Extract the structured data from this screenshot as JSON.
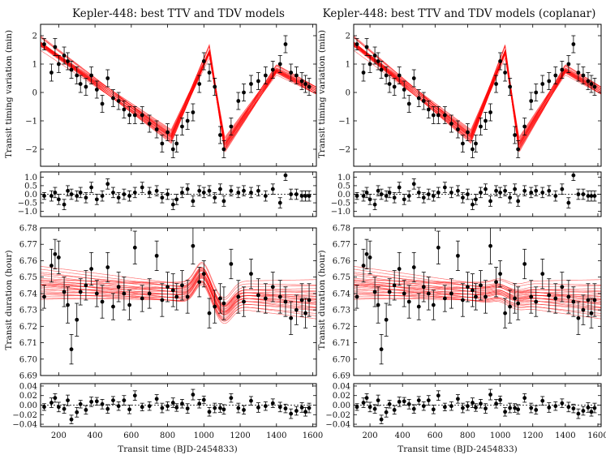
{
  "chart_data": [
    {
      "type": "scatter",
      "title": "Kepler-448: best TTV and TDV models",
      "xlabel": "Transit time (BJD-2454833)",
      "xlim": [
        100,
        1620
      ],
      "xticks": [
        200,
        400,
        600,
        800,
        1000,
        1200,
        1400,
        1600
      ],
      "panels": [
        {
          "id": "ttv",
          "ylabel": "Transit timing variation (min)",
          "ylim": [
            -2.6,
            2.4
          ],
          "yticks": [
            -2,
            -1,
            0,
            1,
            2
          ],
          "ytick_labels": [
            "−2",
            "−1",
            "0",
            "1",
            "2"
          ],
          "model": {
            "kind": "ttv",
            "ampl": 0,
            "color": "#ff0000"
          },
          "series_points": "ttv"
        },
        {
          "id": "ttv_resid",
          "ylabel": "",
          "ylim": [
            -1.3,
            1.3
          ],
          "yticks": [
            -1,
            -0.5,
            0,
            0.5,
            1
          ],
          "ytick_labels": [
            "−1.0",
            "−0.5",
            "0.0",
            "0.5",
            "1.0"
          ],
          "zero_line": true,
          "series_points": "ttv_resid"
        },
        {
          "id": "tdv",
          "ylabel": "Transit duration (hour)",
          "ylim": [
            6.69,
            6.78
          ],
          "yticks": [
            6.69,
            6.7,
            6.71,
            6.72,
            6.73,
            6.74,
            6.75,
            6.76,
            6.77,
            6.78
          ],
          "ytick_labels": [
            "6.69",
            "6.70",
            "6.71",
            "6.72",
            "6.73",
            "6.74",
            "6.75",
            "6.76",
            "6.77",
            "6.78"
          ],
          "model": {
            "kind": "tdv",
            "ampl": 1,
            "color": "#ff0000"
          },
          "series_points": "tdv"
        },
        {
          "id": "tdv_resid",
          "ylabel": "",
          "ylim": [
            -0.045,
            0.045
          ],
          "yticks": [
            -0.04,
            -0.02,
            0,
            0.02,
            0.04
          ],
          "ytick_labels": [
            "−0.04",
            "−0.02",
            "0.00",
            "0.02",
            "0.04"
          ],
          "zero_line": true,
          "series_points": "tdv_resid"
        }
      ]
    },
    {
      "type": "scatter",
      "title": "Kepler-448: best TTV and TDV models (coplanar)",
      "xlabel": "Transit time (BJD-2454833)",
      "xlim": [
        100,
        1620
      ],
      "xticks": [
        200,
        400,
        600,
        800,
        1000,
        1200,
        1400,
        1600
      ],
      "panels": [
        {
          "id": "ttv",
          "ylabel": "Transit timing variation (min)",
          "ylim": [
            -2.6,
            2.4
          ],
          "yticks": [
            -2,
            -1,
            0,
            1,
            2
          ],
          "ytick_labels": [
            "−2",
            "−1",
            "0",
            "1",
            "2"
          ],
          "model": {
            "kind": "ttv",
            "ampl": 0,
            "color": "#ff0000"
          },
          "series_points": "ttv"
        },
        {
          "id": "ttv_resid",
          "ylabel": "",
          "ylim": [
            -1.3,
            1.3
          ],
          "yticks": [
            -1,
            -0.5,
            0,
            0.5,
            1
          ],
          "ytick_labels": [
            "−1.0",
            "−0.5",
            "0.0",
            "0.5",
            "1.0"
          ],
          "zero_line": true,
          "series_points": "ttv_resid"
        },
        {
          "id": "tdv",
          "ylabel": "Transit duration (hour)",
          "ylim": [
            6.69,
            6.78
          ],
          "yticks": [
            6.69,
            6.7,
            6.71,
            6.72,
            6.73,
            6.74,
            6.75,
            6.76,
            6.77,
            6.78
          ],
          "ytick_labels": [
            "6.69",
            "6.70",
            "6.71",
            "6.72",
            "6.73",
            "6.74",
            "6.75",
            "6.76",
            "6.77",
            "6.78"
          ],
          "model": {
            "kind": "tdv",
            "ampl": 0.15,
            "color": "#ff0000"
          },
          "series_points": "tdv"
        },
        {
          "id": "tdv_resid",
          "ylabel": "",
          "ylim": [
            -0.045,
            0.045
          ],
          "yticks": [
            -0.04,
            -0.02,
            0,
            0.02,
            0.04
          ],
          "ytick_labels": [
            "−0.04",
            "−0.02",
            "0.00",
            "0.02",
            "0.04"
          ],
          "zero_line": true,
          "series_points": "tdv_resid"
        }
      ]
    }
  ],
  "observations": {
    "ttv": [
      [
        120,
        1.7,
        0.2
      ],
      [
        160,
        0.7,
        0.3
      ],
      [
        180,
        1.6,
        0.3
      ],
      [
        200,
        1.0,
        0.3
      ],
      [
        230,
        1.3,
        0.3
      ],
      [
        250,
        1.1,
        0.3
      ],
      [
        270,
        0.8,
        0.3
      ],
      [
        300,
        0.6,
        0.3
      ],
      [
        320,
        0.3,
        0.3
      ],
      [
        350,
        0.2,
        0.3
      ],
      [
        380,
        0.6,
        0.3
      ],
      [
        410,
        0.1,
        0.3
      ],
      [
        440,
        -0.4,
        0.3
      ],
      [
        470,
        0.5,
        0.3
      ],
      [
        500,
        -0.2,
        0.3
      ],
      [
        530,
        -0.3,
        0.3
      ],
      [
        560,
        -0.6,
        0.3
      ],
      [
        590,
        -0.8,
        0.3
      ],
      [
        620,
        -0.8,
        0.3
      ],
      [
        660,
        -0.8,
        0.3
      ],
      [
        700,
        -1.1,
        0.3
      ],
      [
        740,
        -1.3,
        0.3
      ],
      [
        770,
        -1.8,
        0.3
      ],
      [
        800,
        -1.4,
        0.3
      ],
      [
        830,
        -2.0,
        0.3
      ],
      [
        850,
        -1.8,
        0.3
      ],
      [
        880,
        -1.2,
        0.3
      ],
      [
        910,
        -1.0,
        0.3
      ],
      [
        940,
        -0.7,
        0.3
      ],
      [
        975,
        0.3,
        0.3
      ],
      [
        1000,
        1.1,
        0.3
      ],
      [
        1030,
        0.7,
        0.3
      ],
      [
        1060,
        0.2,
        0.3
      ],
      [
        1090,
        -1.5,
        0.3
      ],
      [
        1110,
        -2.0,
        0.3
      ],
      [
        1150,
        -1.2,
        0.3
      ],
      [
        1190,
        -0.3,
        0.3
      ],
      [
        1220,
        0.0,
        0.3
      ],
      [
        1260,
        0.3,
        0.3
      ],
      [
        1300,
        0.4,
        0.3
      ],
      [
        1340,
        0.6,
        0.3
      ],
      [
        1380,
        0.8,
        0.3
      ],
      [
        1420,
        1.0,
        0.3
      ],
      [
        1450,
        1.7,
        0.3
      ],
      [
        1480,
        0.7,
        0.3
      ],
      [
        1510,
        0.6,
        0.3
      ],
      [
        1540,
        0.4,
        0.3
      ],
      [
        1560,
        0.3,
        0.3
      ],
      [
        1580,
        0.2,
        0.3
      ]
    ],
    "ttv_resid": [
      [
        120,
        -0.1,
        0.2
      ],
      [
        160,
        -0.1,
        0.3
      ],
      [
        180,
        0.1,
        0.3
      ],
      [
        200,
        -0.3,
        0.3
      ],
      [
        230,
        -0.6,
        0.3
      ],
      [
        250,
        0.2,
        0.3
      ],
      [
        270,
        0.0,
        0.3
      ],
      [
        300,
        -0.1,
        0.3
      ],
      [
        320,
        0.1,
        0.3
      ],
      [
        350,
        -0.2,
        0.3
      ],
      [
        380,
        0.4,
        0.3
      ],
      [
        410,
        -0.3,
        0.3
      ],
      [
        440,
        -0.1,
        0.3
      ],
      [
        470,
        0.6,
        0.3
      ],
      [
        500,
        0.1,
        0.3
      ],
      [
        530,
        -0.2,
        0.3
      ],
      [
        560,
        0.0,
        0.3
      ],
      [
        590,
        -0.1,
        0.3
      ],
      [
        620,
        0.1,
        0.3
      ],
      [
        660,
        0.4,
        0.3
      ],
      [
        700,
        0.1,
        0.3
      ],
      [
        740,
        0.2,
        0.3
      ],
      [
        770,
        -0.2,
        0.3
      ],
      [
        800,
        0.0,
        0.3
      ],
      [
        830,
        -0.6,
        0.3
      ],
      [
        850,
        -0.3,
        0.3
      ],
      [
        880,
        0.1,
        0.3
      ],
      [
        910,
        0.3,
        0.3
      ],
      [
        940,
        -0.4,
        0.3
      ],
      [
        975,
        0.2,
        0.3
      ],
      [
        1000,
        0.1,
        0.3
      ],
      [
        1030,
        0.2,
        0.3
      ],
      [
        1060,
        -0.2,
        0.3
      ],
      [
        1090,
        0.3,
        0.3
      ],
      [
        1110,
        -0.4,
        0.3
      ],
      [
        1150,
        0.2,
        0.3
      ],
      [
        1190,
        0.1,
        0.3
      ],
      [
        1220,
        0.2,
        0.3
      ],
      [
        1260,
        0.1,
        0.3
      ],
      [
        1300,
        0.2,
        0.3
      ],
      [
        1340,
        -0.1,
        0.3
      ],
      [
        1380,
        0.3,
        0.3
      ],
      [
        1420,
        -0.5,
        0.3
      ],
      [
        1450,
        1.1,
        0.3
      ],
      [
        1480,
        0.0,
        0.3
      ],
      [
        1510,
        0.0,
        0.3
      ],
      [
        1540,
        -0.1,
        0.3
      ],
      [
        1560,
        -0.1,
        0.3
      ],
      [
        1580,
        -0.1,
        0.3
      ]
    ],
    "tdv": [
      [
        120,
        6.738,
        0.007
      ],
      [
        160,
        6.757,
        0.01
      ],
      [
        180,
        6.764,
        0.009
      ],
      [
        200,
        6.762,
        0.01
      ],
      [
        230,
        6.741,
        0.009
      ],
      [
        250,
        6.733,
        0.011
      ],
      [
        270,
        6.706,
        0.009
      ],
      [
        300,
        6.724,
        0.01
      ],
      [
        320,
        6.741,
        0.008
      ],
      [
        350,
        6.745,
        0.009
      ],
      [
        380,
        6.755,
        0.01
      ],
      [
        410,
        6.74,
        0.008
      ],
      [
        440,
        6.735,
        0.01
      ],
      [
        470,
        6.756,
        0.009
      ],
      [
        500,
        6.732,
        0.008
      ],
      [
        530,
        6.744,
        0.009
      ],
      [
        560,
        6.74,
        0.01
      ],
      [
        590,
        6.733,
        0.009
      ],
      [
        620,
        6.768,
        0.01
      ],
      [
        660,
        6.737,
        0.008
      ],
      [
        700,
        6.74,
        0.009
      ],
      [
        740,
        6.763,
        0.009
      ],
      [
        770,
        6.736,
        0.01
      ],
      [
        800,
        6.744,
        0.009
      ],
      [
        830,
        6.742,
        0.01
      ],
      [
        850,
        6.738,
        0.008
      ],
      [
        880,
        6.745,
        0.009
      ],
      [
        910,
        6.738,
        0.01
      ],
      [
        940,
        6.769,
        0.011
      ],
      [
        975,
        6.747,
        0.009
      ],
      [
        1000,
        6.752,
        0.008
      ],
      [
        1030,
        6.728,
        0.009
      ],
      [
        1060,
        6.732,
        0.01
      ],
      [
        1090,
        6.737,
        0.009
      ],
      [
        1110,
        6.734,
        0.01
      ],
      [
        1150,
        6.758,
        0.009
      ],
      [
        1190,
        6.738,
        0.01
      ],
      [
        1220,
        6.735,
        0.009
      ],
      [
        1260,
        6.752,
        0.009
      ],
      [
        1300,
        6.739,
        0.01
      ],
      [
        1340,
        6.737,
        0.009
      ],
      [
        1380,
        6.744,
        0.009
      ],
      [
        1420,
        6.738,
        0.01
      ],
      [
        1450,
        6.735,
        0.009
      ],
      [
        1480,
        6.725,
        0.01
      ],
      [
        1510,
        6.73,
        0.009
      ],
      [
        1540,
        6.736,
        0.01
      ],
      [
        1560,
        6.728,
        0.009
      ],
      [
        1580,
        6.736,
        0.01
      ]
    ],
    "tdv_resid": [
      [
        120,
        -0.004,
        0.007
      ],
      [
        160,
        0.005,
        0.01
      ],
      [
        180,
        0.015,
        0.009
      ],
      [
        200,
        -0.004,
        0.01
      ],
      [
        230,
        -0.008,
        0.009
      ],
      [
        250,
        0.01,
        0.011
      ],
      [
        270,
        -0.03,
        0.009
      ],
      [
        300,
        -0.015,
        0.01
      ],
      [
        320,
        0.002,
        0.008
      ],
      [
        350,
        -0.01,
        0.009
      ],
      [
        380,
        0.007,
        0.01
      ],
      [
        410,
        0.008,
        0.008
      ],
      [
        440,
        0.002,
        0.01
      ],
      [
        470,
        -0.008,
        0.009
      ],
      [
        500,
        0.01,
        0.008
      ],
      [
        530,
        -0.002,
        0.009
      ],
      [
        560,
        0.01,
        0.01
      ],
      [
        590,
        -0.009,
        0.009
      ],
      [
        620,
        0.02,
        0.01
      ],
      [
        660,
        -0.004,
        0.008
      ],
      [
        700,
        -0.002,
        0.009
      ],
      [
        740,
        0.013,
        0.009
      ],
      [
        770,
        -0.006,
        0.01
      ],
      [
        800,
        -0.002,
        0.009
      ],
      [
        830,
        0.005,
        0.01
      ],
      [
        850,
        -0.005,
        0.008
      ],
      [
        880,
        0.003,
        0.009
      ],
      [
        910,
        -0.007,
        0.01
      ],
      [
        940,
        0.022,
        0.011
      ],
      [
        975,
        0.003,
        0.009
      ],
      [
        1000,
        0.011,
        0.008
      ],
      [
        1030,
        -0.014,
        0.009
      ],
      [
        1060,
        -0.006,
        0.01
      ],
      [
        1090,
        -0.006,
        0.009
      ],
      [
        1110,
        -0.009,
        0.01
      ],
      [
        1150,
        0.015,
        0.009
      ],
      [
        1190,
        -0.006,
        0.01
      ],
      [
        1220,
        -0.01,
        0.009
      ],
      [
        1260,
        0.009,
        0.009
      ],
      [
        1300,
        -0.005,
        0.01
      ],
      [
        1340,
        -0.002,
        0.009
      ],
      [
        1380,
        0.004,
        0.009
      ],
      [
        1420,
        -0.004,
        0.01
      ],
      [
        1450,
        -0.007,
        0.009
      ],
      [
        1480,
        -0.018,
        0.01
      ],
      [
        1510,
        -0.012,
        0.009
      ],
      [
        1540,
        -0.005,
        0.01
      ],
      [
        1560,
        -0.014,
        0.009
      ],
      [
        1580,
        -0.006,
        0.01
      ]
    ]
  }
}
